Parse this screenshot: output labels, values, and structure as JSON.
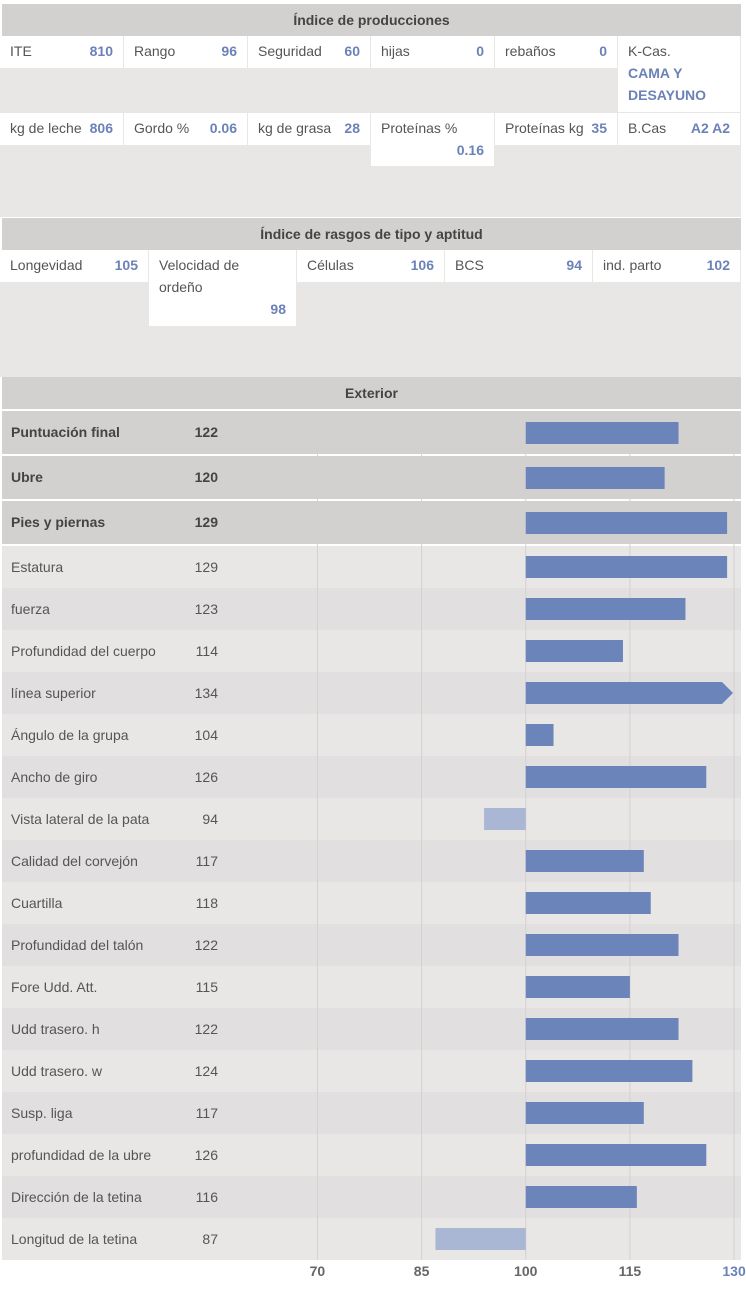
{
  "production": {
    "title": "Índice de producciones",
    "row1": [
      {
        "label": "ITE",
        "value": "810"
      },
      {
        "label": "Rango",
        "value": "96"
      },
      {
        "label": "Seguridad",
        "value": "60"
      },
      {
        "label": "hijas",
        "value": "0"
      },
      {
        "label": "rebaños",
        "value": "0"
      },
      {
        "label": "K-Cas.",
        "value": "CAMA Y DESAYUNO"
      }
    ],
    "row2": [
      {
        "label": "kg de leche",
        "value": "806"
      },
      {
        "label": "Gordo %",
        "value": "0.06"
      },
      {
        "label": "kg de grasa",
        "value": "28"
      },
      {
        "label": "Proteínas %",
        "value": "0.16"
      },
      {
        "label": "Proteínas kg",
        "value": "35"
      },
      {
        "label": "B.Cas",
        "value": "A2 A2"
      }
    ]
  },
  "type_traits": {
    "title": "Índice de rasgos de tipo y aptitud",
    "items": [
      {
        "label": "Longevidad",
        "value": "105"
      },
      {
        "label": "Velocidad de ordeño",
        "value": "98"
      },
      {
        "label": "Células",
        "value": "106"
      },
      {
        "label": "BCS",
        "value": "94"
      },
      {
        "label": "ind. parto",
        "value": "102"
      }
    ]
  },
  "exterior": {
    "title": "Exterior"
  },
  "chart_data": {
    "type": "bar",
    "orientation": "horizontal",
    "baseline": 100,
    "xlim": [
      60,
      131
    ],
    "ticks": [
      70,
      85,
      100,
      115,
      130
    ],
    "colors": {
      "above": "#6b84ba",
      "below": "#a9b6d4",
      "grid": "#d3d0d0"
    },
    "categories": [
      "Puntuación final",
      "Ubre",
      "Pies y piernas",
      "Estatura",
      "fuerza",
      "Profundidad del cuerpo",
      "línea superior",
      "Ángulo de la grupa",
      "Ancho de giro",
      "Vista lateral de la pata",
      "Calidad del corvejón",
      "Cuartilla",
      "Profundidad del talón",
      "Fore Udd. Att.",
      "Udd trasero. h",
      "Udd trasero. w",
      "Susp. liga",
      "profundidad de la ubre",
      "Dirección de la tetina",
      "Longitud de la tetina"
    ],
    "values": [
      122,
      120,
      129,
      129,
      123,
      114,
      134,
      104,
      126,
      94,
      117,
      118,
      122,
      115,
      122,
      124,
      117,
      126,
      116,
      87
    ],
    "bold_rows": [
      0,
      1,
      2
    ],
    "overflow_indices": [
      6
    ]
  }
}
